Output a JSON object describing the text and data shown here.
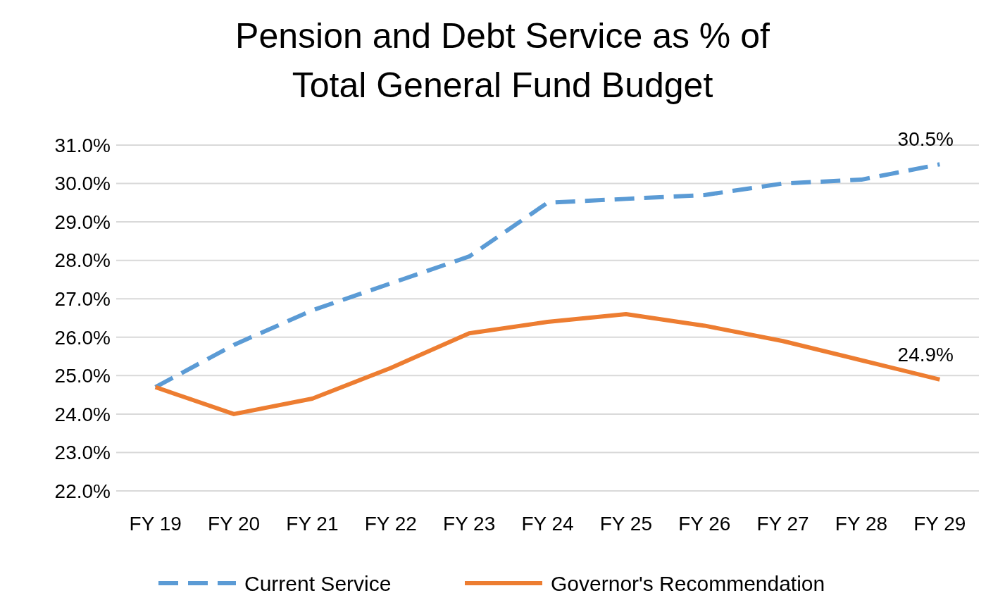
{
  "chart_data": {
    "type": "line",
    "title": "Pension and Debt Service as % of\nTotal General Fund Budget",
    "categories": [
      "FY 19",
      "FY 20",
      "FY 21",
      "FY 22",
      "FY 23",
      "FY 24",
      "FY 25",
      "FY 26",
      "FY 27",
      "FY 28",
      "FY 29"
    ],
    "series": [
      {
        "name": "Current Service",
        "color": "#5b9bd5",
        "line_style": "dashed",
        "values": [
          24.7,
          25.8,
          26.7,
          27.4,
          28.1,
          29.5,
          29.6,
          29.7,
          30.0,
          30.1,
          30.5
        ],
        "value_labels": [
          null,
          null,
          null,
          null,
          null,
          null,
          null,
          null,
          null,
          null,
          "30.5%"
        ]
      },
      {
        "name": "Governor's Recommendation",
        "color": "#ed7d31",
        "line_style": "solid",
        "values": [
          24.7,
          24.0,
          24.4,
          25.2,
          26.1,
          26.4,
          26.6,
          26.3,
          25.9,
          25.4,
          24.9
        ],
        "value_labels": [
          null,
          null,
          null,
          null,
          null,
          null,
          null,
          null,
          null,
          null,
          "24.9%"
        ]
      }
    ],
    "ylim": [
      22,
      31
    ],
    "yticks": [
      {
        "value": 22,
        "label": "22.0%"
      },
      {
        "value": 23,
        "label": "23.0%"
      },
      {
        "value": 24,
        "label": "24.0%"
      },
      {
        "value": 25,
        "label": "25.0%"
      },
      {
        "value": 26,
        "label": "26.0%"
      },
      {
        "value": 27,
        "label": "27.0%"
      },
      {
        "value": 28,
        "label": "28.0%"
      },
      {
        "value": 29,
        "label": "29.0%"
      },
      {
        "value": 30,
        "label": "30.0%"
      },
      {
        "value": 31,
        "label": "31.0%"
      }
    ],
    "grid": "y",
    "legend": "bottom"
  }
}
